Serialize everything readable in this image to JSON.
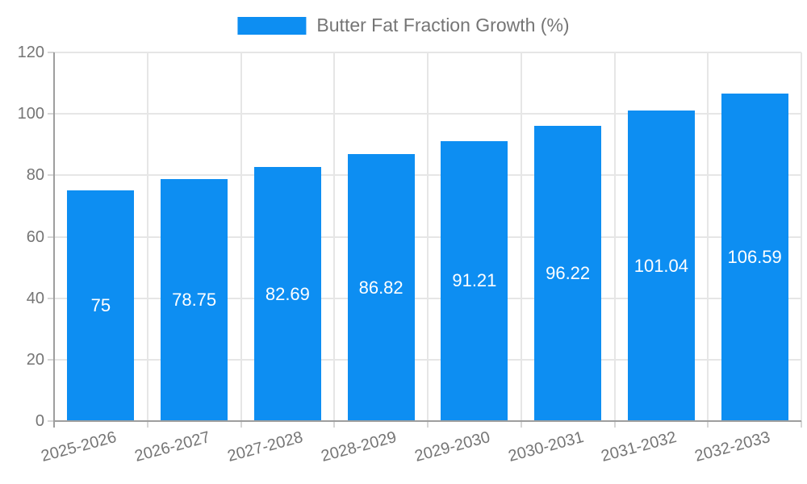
{
  "legend": {
    "label": "Butter Fat Fraction Growth (%)"
  },
  "colors": {
    "bar": "#0d8ef2",
    "axis": "#9e9e9e",
    "grid": "#e6e6e6",
    "tick": "#d6d6d6",
    "text": "#757575",
    "value_label": "#ffffff",
    "background": "#ffffff"
  },
  "chart_data": {
    "type": "bar",
    "title": "Butter Fat Fraction Growth (%)",
    "categories": [
      "2025-2026",
      "2026-2027",
      "2027-2028",
      "2028-2029",
      "2029-2030",
      "2030-2031",
      "2031-2032",
      "2032-2033"
    ],
    "values": [
      75,
      78.75,
      82.69,
      86.82,
      91.21,
      96.22,
      101.04,
      106.59
    ],
    "value_labels": [
      "75",
      "78.75",
      "82.69",
      "86.82",
      "91.21",
      "96.22",
      "101.04",
      "106.59"
    ],
    "xlabel": "",
    "ylabel": "",
    "ylim": [
      0,
      120
    ],
    "yticks": [
      0,
      20,
      40,
      60,
      80,
      100,
      120
    ],
    "grid": true,
    "legend_position": "top",
    "value_label_position": "center-inside",
    "xtick_label_rotation_deg": -15
  }
}
